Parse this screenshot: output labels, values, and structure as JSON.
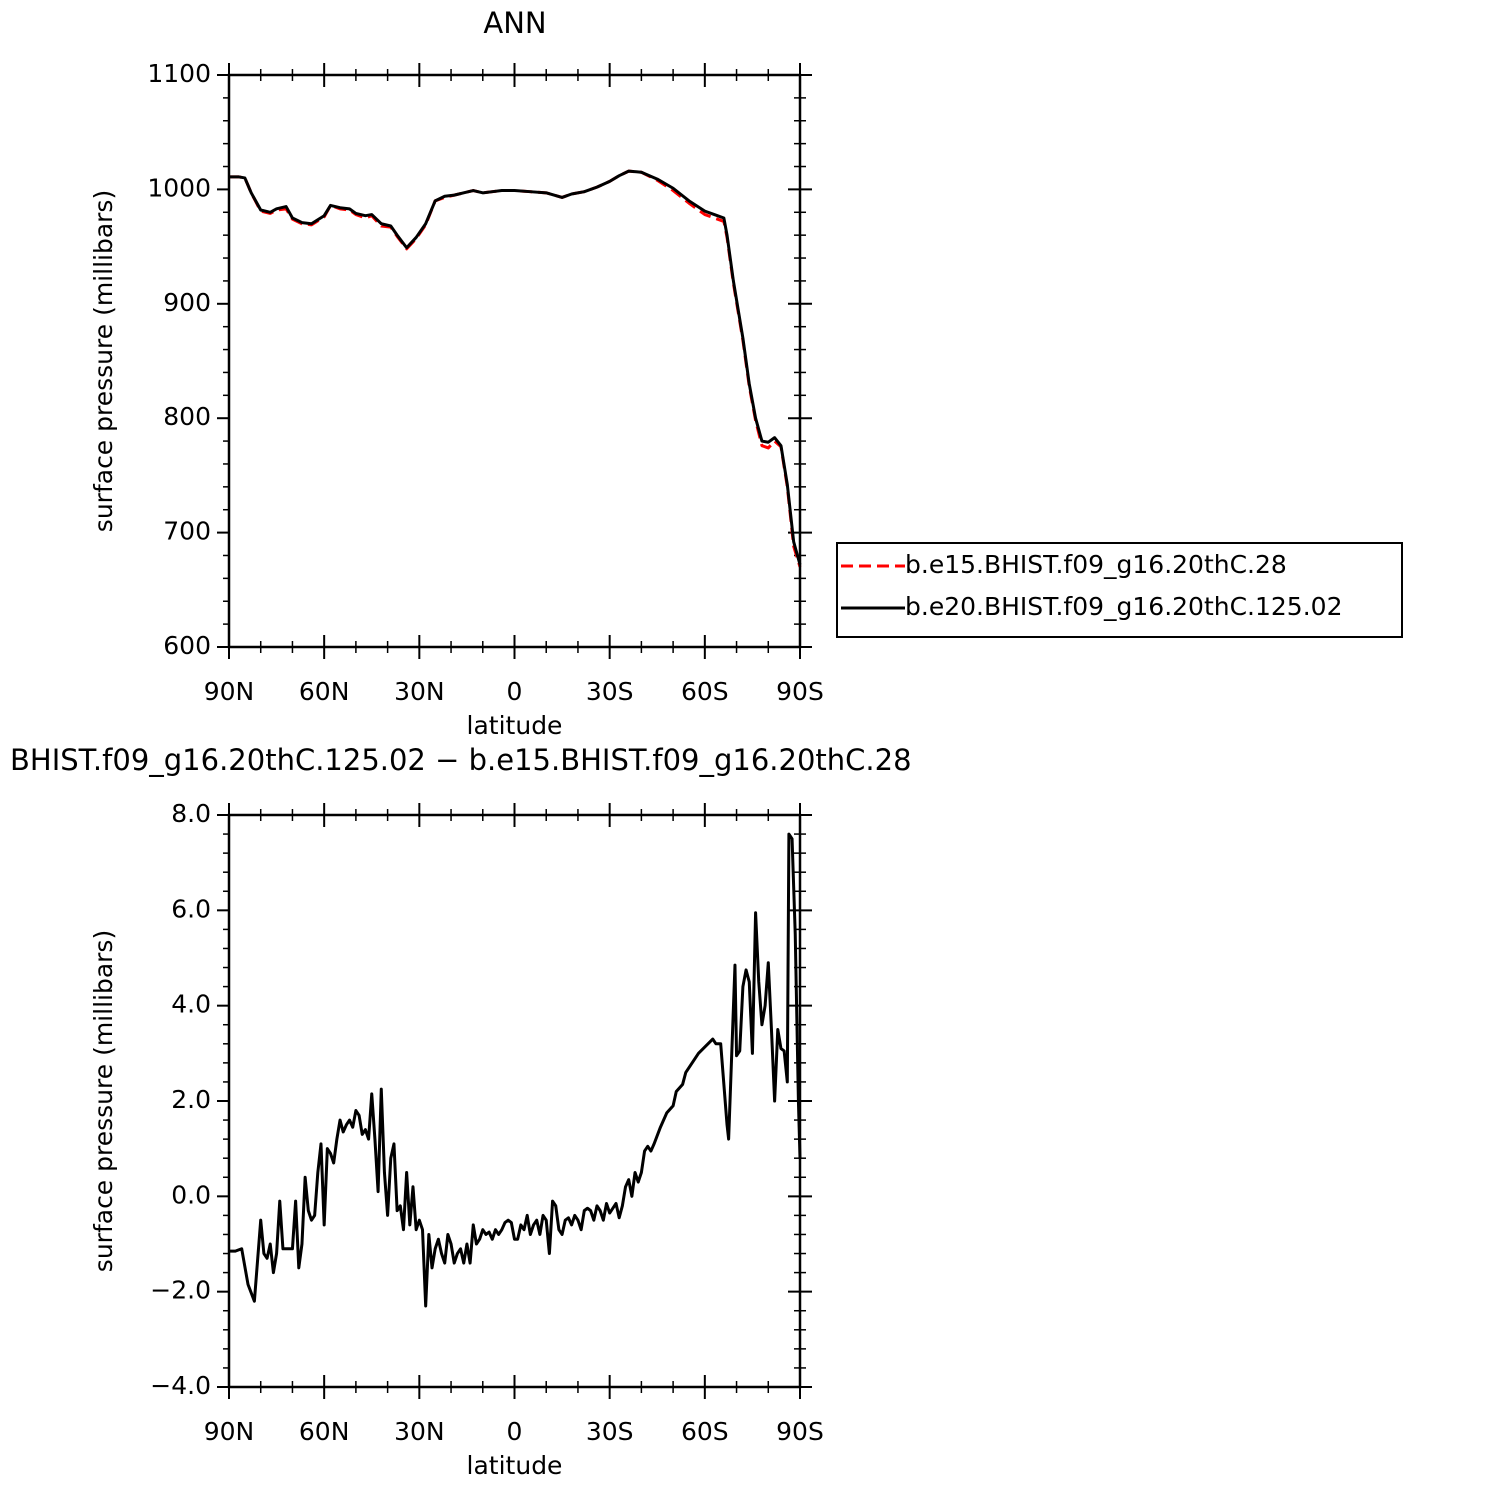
{
  "chart_data": [
    {
      "type": "line",
      "title": "ANN",
      "xlabel": "latitude",
      "ylabel": "surface pressure (millibars)",
      "xlim": [
        90,
        -90
      ],
      "xticks": [
        {
          "value": 90,
          "label": "90N"
        },
        {
          "value": 60,
          "label": "60N"
        },
        {
          "value": 30,
          "label": "30N"
        },
        0,
        {
          "value": -30,
          "label": "30S"
        },
        {
          "value": -60,
          "label": "60S"
        },
        {
          "value": -90,
          "label": "90S"
        }
      ],
      "ylim": [
        600,
        1100
      ],
      "yticks": [
        600,
        700,
        800,
        900,
        1000,
        1100
      ],
      "legend": "right",
      "x": [
        90,
        87,
        85,
        83,
        80,
        77,
        75,
        72,
        70,
        67,
        64,
        60,
        58,
        55,
        52,
        50,
        47,
        45,
        42,
        39,
        37,
        34,
        31,
        28,
        25,
        22,
        19,
        16,
        13,
        10,
        7,
        4,
        0,
        -5,
        -10,
        -15,
        -18,
        -22,
        -26,
        -30,
        -33,
        -36,
        -40,
        -45,
        -50,
        -55,
        -60,
        -63,
        -66,
        -67,
        -69,
        -72,
        -74,
        -76,
        -78,
        -80,
        -82,
        -84,
        -86,
        -88,
        -90
      ],
      "series": [
        {
          "name": "b.e15.BHIST.f09_g16.20thC.28",
          "color": "#ff0000",
          "style": "dashed",
          "values": [
            1011,
            1011,
            1010,
            997,
            981,
            979,
            982,
            983,
            974,
            970,
            969,
            976,
            986,
            983,
            982,
            978,
            975,
            977,
            968,
            967,
            959,
            948,
            957,
            969,
            990,
            993,
            995,
            997,
            999,
            997,
            998,
            999,
            999,
            998,
            997,
            993,
            996,
            998,
            1002,
            1007,
            1012,
            1016,
            1015,
            1008,
            999,
            988,
            978,
            975,
            972,
            958,
            918,
            868,
            828,
            798,
            776,
            774,
            780,
            775,
            740,
            688,
            670
          ]
        },
        {
          "name": "b.e20.BHIST.f09_g16.20thC.125.02",
          "color": "#000000",
          "style": "solid",
          "values": [
            1011,
            1011,
            1010,
            997,
            982,
            980,
            983,
            985,
            975,
            971,
            970,
            977,
            986,
            984,
            983,
            979,
            977,
            978,
            970,
            968,
            960,
            949,
            958,
            970,
            990,
            994,
            995,
            997,
            999,
            997,
            998,
            999,
            999,
            998,
            997,
            993,
            996,
            998,
            1002,
            1007,
            1012,
            1016,
            1015,
            1009,
            1001,
            990,
            981,
            978,
            975,
            960,
            920,
            870,
            830,
            800,
            780,
            779,
            783,
            776,
            742,
            692,
            672
          ]
        }
      ]
    },
    {
      "type": "line",
      "title": "BHIST.f09_g16.20thC.125.02 − b.e15.BHIST.f09_g16.20thC.28",
      "xlabel": "latitude",
      "ylabel": "surface pressure (millibars)",
      "xlim": [
        90,
        -90
      ],
      "xticks": [
        {
          "value": 90,
          "label": "90N"
        },
        {
          "value": 60,
          "label": "60N"
        },
        {
          "value": 30,
          "label": "30N"
        },
        0,
        {
          "value": -30,
          "label": "30S"
        },
        {
          "value": -60,
          "label": "60S"
        },
        {
          "value": -90,
          "label": "90S"
        }
      ],
      "ylim": [
        -4,
        8
      ],
      "yticks": [
        {
          "value": -4,
          "label": "−4.0"
        },
        {
          "value": -2,
          "label": "−2.0"
        },
        {
          "value": 0,
          "label": "0.0"
        },
        {
          "value": 2,
          "label": "2.0"
        },
        {
          "value": 4,
          "label": "4.0"
        },
        {
          "value": 6,
          "label": "6.0"
        },
        {
          "value": 8,
          "label": "8.0"
        }
      ],
      "x": [
        90,
        88,
        86,
        84,
        82,
        80,
        79,
        78,
        77,
        76,
        75,
        74,
        73,
        71,
        70,
        69,
        68,
        67,
        66,
        65,
        64,
        63,
        62,
        61,
        60,
        59,
        58,
        57,
        56,
        55,
        54,
        53,
        52,
        51,
        50,
        49,
        48,
        47,
        46,
        45,
        44,
        43,
        42,
        41,
        40,
        39,
        38,
        37,
        36,
        35,
        34,
        33,
        32,
        31,
        30,
        29,
        28,
        27,
        26,
        25,
        24,
        23,
        22,
        21,
        20,
        19,
        18,
        17,
        16,
        15,
        14,
        13,
        12,
        11,
        10,
        9,
        8,
        7,
        6,
        5,
        4,
        3,
        2,
        1,
        0,
        -1,
        -2,
        -3,
        -4,
        -5,
        -6,
        -7,
        -8,
        -9,
        -10,
        -11,
        -12,
        -13,
        -14,
        -15,
        -16,
        -17,
        -18,
        -19,
        -20,
        -21,
        -22,
        -23,
        -24,
        -25,
        -26,
        -27,
        -28,
        -29,
        -30,
        -32,
        -33,
        -34,
        -35,
        -36,
        -37,
        -38,
        -39,
        -40,
        -41,
        -42,
        -43,
        -44,
        -46,
        -48,
        -50,
        -51,
        -53,
        -54,
        -58,
        -62.5,
        -63.5,
        -65,
        -67,
        -67.5,
        -69.5,
        -70,
        -71,
        -72,
        -73,
        -74,
        -75,
        -76,
        -77,
        -78,
        -79,
        -80,
        -81,
        -82,
        -83,
        -84,
        -85,
        -86,
        -86.5,
        -87.5,
        -88.5,
        -89.5,
        -90
      ],
      "series": [
        {
          "color": "#000000",
          "style": "solid",
          "values": [
            -1.15,
            -1.15,
            -1.1,
            -1.85,
            -2.2,
            -0.5,
            -1.2,
            -1.3,
            -1.0,
            -1.6,
            -1.2,
            -0.1,
            -1.1,
            -1.1,
            -1.1,
            -0.1,
            -1.5,
            -1.0,
            0.4,
            -0.3,
            -0.5,
            -0.4,
            0.5,
            1.1,
            -0.6,
            1.0,
            0.9,
            0.7,
            1.2,
            1.6,
            1.35,
            1.5,
            1.6,
            1.45,
            1.8,
            1.7,
            1.3,
            1.4,
            1.2,
            2.15,
            1.2,
            0.1,
            2.25,
            0.5,
            -0.4,
            0.8,
            1.1,
            -0.3,
            -0.2,
            -0.7,
            0.5,
            -0.6,
            0.2,
            -0.7,
            -0.5,
            -0.7,
            -2.3,
            -0.8,
            -1.5,
            -1.1,
            -0.9,
            -1.2,
            -1.4,
            -0.8,
            -1.0,
            -1.4,
            -1.2,
            -1.1,
            -1.4,
            -1.0,
            -1.4,
            -0.6,
            -1.0,
            -0.9,
            -0.7,
            -0.8,
            -0.75,
            -0.9,
            -0.7,
            -0.8,
            -0.7,
            -0.55,
            -0.5,
            -0.55,
            -0.9,
            -0.9,
            -0.6,
            -0.7,
            -0.4,
            -0.8,
            -0.6,
            -0.5,
            -0.8,
            -0.4,
            -0.5,
            -1.2,
            -0.1,
            -0.2,
            -0.7,
            -0.8,
            -0.5,
            -0.45,
            -0.6,
            -0.4,
            -0.5,
            -0.7,
            -0.3,
            -0.25,
            -0.3,
            -0.5,
            -0.2,
            -0.3,
            -0.5,
            -0.15,
            -0.35,
            -0.15,
            -0.45,
            -0.2,
            0.2,
            0.35,
            0.0,
            0.5,
            0.3,
            0.5,
            0.95,
            1.05,
            0.95,
            1.1,
            1.45,
            1.75,
            1.9,
            2.2,
            2.35,
            2.6,
            3.0,
            3.3,
            3.2,
            3.2,
            1.5,
            1.2,
            4.85,
            2.95,
            3.05,
            4.4,
            4.75,
            4.5,
            3.0,
            5.95,
            4.5,
            3.6,
            4.0,
            4.9,
            3.5,
            2.0,
            3.5,
            3.1,
            3.05,
            2.4,
            7.6,
            7.5,
            5.5,
            2.0,
            0.8
          ]
        }
      ]
    }
  ]
}
